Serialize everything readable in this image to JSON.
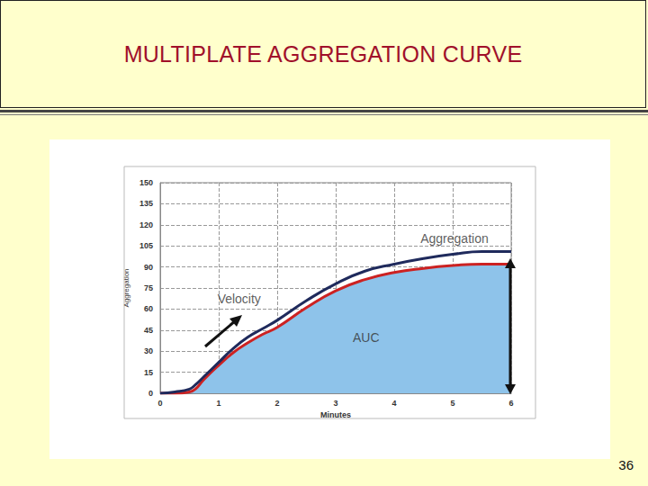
{
  "slide": {
    "title": "MULTIPLATE AGGREGATION CURVE",
    "page_number": "36"
  },
  "chart_data": {
    "type": "line",
    "xlabel": "Minutes",
    "ylabel": "Aggregation",
    "x": [
      0,
      0.25,
      0.5,
      0.6,
      0.75,
      1,
      1.25,
      1.5,
      1.75,
      2,
      2.5,
      3,
      3.5,
      4,
      4.5,
      5,
      5.5,
      6
    ],
    "series": [
      {
        "type": "line",
        "color": "#1F2A5C",
        "values": [
          0,
          1,
          3,
          6,
          12,
          22,
          32,
          40,
          46,
          52,
          66,
          78,
          87,
          92,
          96,
          99,
          101,
          101
        ]
      },
      {
        "type": "area",
        "color": "#CC2222",
        "values": [
          0,
          0,
          1,
          3,
          10,
          20,
          29,
          36,
          42,
          47,
          61,
          73,
          81,
          86,
          89,
          91,
          92,
          92
        ]
      }
    ],
    "annotations": [
      {
        "text": "Aggregation",
        "x": 5.03,
        "y": 110
      },
      {
        "text": "Velocity",
        "x": 1.35,
        "y": 67
      },
      {
        "text": "AUC",
        "x": 3.52,
        "y": 40
      }
    ],
    "xlim": [
      0,
      6
    ],
    "xticks": [
      0,
      1,
      2,
      3,
      4,
      5,
      6
    ],
    "ylim": [
      0,
      150
    ],
    "yticks": [
      0,
      15,
      30,
      45,
      60,
      75,
      90,
      105,
      120,
      135,
      150
    ],
    "grid": true
  }
}
